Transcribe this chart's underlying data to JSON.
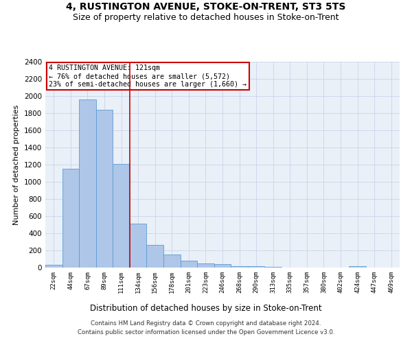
{
  "title": "4, RUSTINGTON AVENUE, STOKE-ON-TRENT, ST3 5TS",
  "subtitle": "Size of property relative to detached houses in Stoke-on-Trent",
  "xlabel": "Distribution of detached houses by size in Stoke-on-Trent",
  "ylabel": "Number of detached properties",
  "bin_labels": [
    "22sqm",
    "44sqm",
    "67sqm",
    "89sqm",
    "111sqm",
    "134sqm",
    "156sqm",
    "178sqm",
    "201sqm",
    "223sqm",
    "246sqm",
    "268sqm",
    "290sqm",
    "313sqm",
    "335sqm",
    "357sqm",
    "380sqm",
    "402sqm",
    "424sqm",
    "447sqm",
    "469sqm"
  ],
  "bar_heights": [
    30,
    1150,
    1960,
    1840,
    1210,
    510,
    265,
    155,
    80,
    45,
    42,
    18,
    18,
    12,
    0,
    0,
    0,
    0,
    15,
    0,
    0
  ],
  "bar_color": "#aec6e8",
  "bar_edge_color": "#5b9bd5",
  "property_line_x": 4.5,
  "annotation_text_line1": "4 RUSTINGTON AVENUE: 121sqm",
  "annotation_text_line2": "← 76% of detached houses are smaller (5,572)",
  "annotation_text_line3": "23% of semi-detached houses are larger (1,660) →",
  "annotation_box_color": "#ffffff",
  "annotation_border_color": "#cc0000",
  "ylim": [
    0,
    2400
  ],
  "yticks": [
    0,
    200,
    400,
    600,
    800,
    1000,
    1200,
    1400,
    1600,
    1800,
    2000,
    2200,
    2400
  ],
  "footer_line1": "Contains HM Land Registry data © Crown copyright and database right 2024.",
  "footer_line2": "Contains public sector information licensed under the Open Government Licence v3.0.",
  "bg_color": "#ffffff",
  "plot_bg_color": "#eaf0f8",
  "grid_color": "#c8d4e8",
  "title_fontsize": 10,
  "subtitle_fontsize": 9
}
